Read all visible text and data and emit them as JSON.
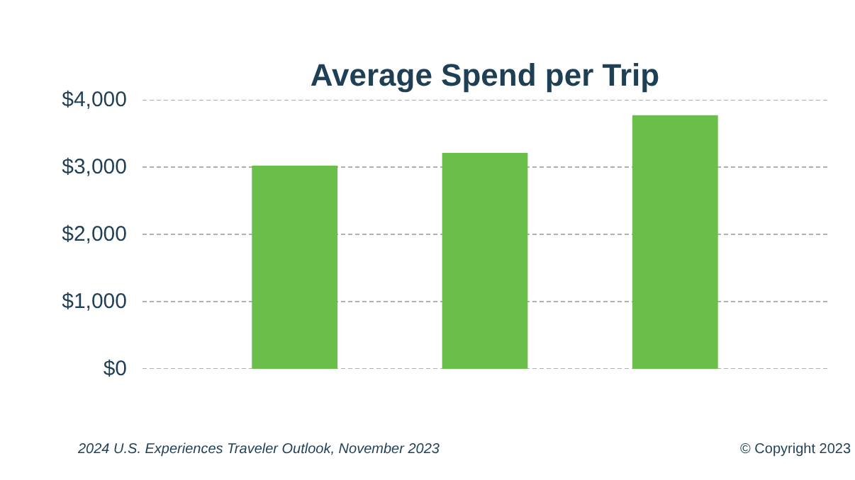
{
  "chart_data": {
    "type": "bar",
    "title": "Average Spend per Trip",
    "categories": [
      null,
      null,
      null
    ],
    "values": [
      3020,
      3210,
      3770
    ],
    "color": "#6abf4b",
    "ylim": [
      0,
      4000
    ],
    "yticks": [
      {
        "value": 0,
        "label": "$0"
      },
      {
        "value": 1000,
        "label": "$1,000"
      },
      {
        "value": 2000,
        "label": "$2,000"
      },
      {
        "value": 3000,
        "label": "$3,000"
      },
      {
        "value": 4000,
        "label": "$4,000"
      }
    ],
    "grid": "y",
    "annotations": [
      "2024 U.S. Experiences Traveler Outlook, November 2023",
      "© Copyright 2023"
    ]
  }
}
